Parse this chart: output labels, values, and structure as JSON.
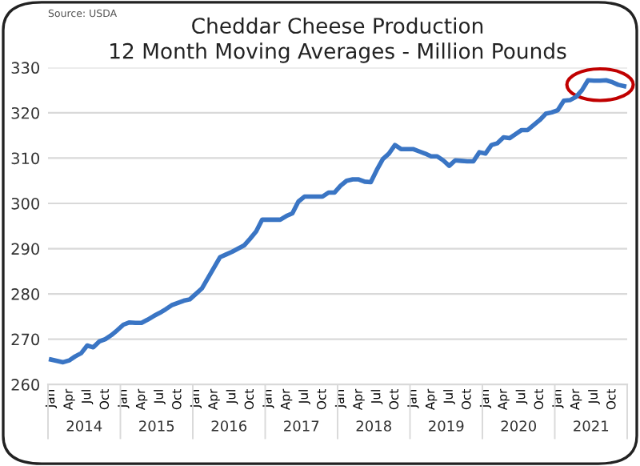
{
  "chart_data": {
    "type": "line",
    "title": "Cheddar Cheese Production\n12 Month Moving Averages - Million Pounds",
    "categories": [
      "Jan",
      null,
      null,
      "Apr",
      null,
      null,
      "Jul",
      null,
      null,
      "Oct",
      null,
      null,
      "Jan",
      null,
      null,
      "Apr",
      null,
      null,
      "Jul",
      null,
      null,
      "Oct",
      null,
      null,
      "Jan",
      null,
      null,
      "Apr",
      null,
      null,
      "Jul",
      null,
      null,
      "Oct",
      null,
      null,
      "Jan",
      null,
      null,
      "Apr",
      null,
      null,
      "Jul",
      null,
      null,
      "Oct",
      null,
      null,
      "Jan",
      null,
      null,
      "Apr",
      null,
      null,
      "Jul",
      null,
      null,
      "Oct",
      null,
      null,
      "Jan",
      null,
      null,
      "Apr",
      null,
      null,
      "Jul",
      null,
      null,
      "Oct",
      null,
      null,
      "Jan",
      null,
      null,
      "Apr",
      null,
      null,
      "Jul",
      null,
      null,
      "Oct",
      null,
      null,
      "Jan",
      null,
      null,
      "Apr",
      null,
      null,
      "Jul",
      null,
      null,
      "Oct",
      null,
      null
    ],
    "series": [
      {
        "color": "#3a75c4",
        "values": [
          265.5,
          265.2,
          264.9,
          265.3,
          266.2,
          266.9,
          268.6,
          268.2,
          269.5,
          270,
          270.9,
          272,
          273.2,
          273.7,
          273.6,
          273.6,
          274.3,
          275.1,
          275.8,
          276.6,
          277.5,
          278,
          278.5,
          278.8,
          280,
          281.2,
          283.5,
          285.8,
          288.1,
          288.7,
          289.3,
          290,
          290.7,
          292.2,
          293.8,
          296.4,
          296.4,
          296.4,
          296.4,
          297.2,
          297.8,
          300.4,
          301.5,
          301.5,
          301.5,
          301.5,
          302.4,
          302.4,
          303.9,
          305,
          305.3,
          305.3,
          304.8,
          304.7,
          307.4,
          309.8,
          311,
          312.9,
          312,
          312,
          312,
          311.5,
          311,
          310.4,
          310.4,
          309.5,
          308.3,
          309.5,
          309.4,
          309.3,
          309.3,
          311.3,
          311,
          312.9,
          313.3,
          314.6,
          314.4,
          315.3,
          316.2,
          316.2,
          317.3,
          318.4,
          319.8,
          320.1,
          320.6,
          322.7,
          322.8,
          323.5,
          325,
          327.2,
          327.1,
          327.1,
          327.2,
          326.8,
          326.2,
          325.9
        ]
      }
    ],
    "ylim": [
      260,
      330
    ],
    "yticks": [
      260,
      270,
      280,
      290,
      300,
      310,
      320,
      330
    ],
    "grid": "y",
    "legend": false,
    "marker": "none",
    "line_style": "solid",
    "annotations": [
      "Source: USDA",
      "2014",
      "2015",
      "2016",
      "2017",
      "2018",
      "2019",
      "2020",
      "2021"
    ]
  }
}
